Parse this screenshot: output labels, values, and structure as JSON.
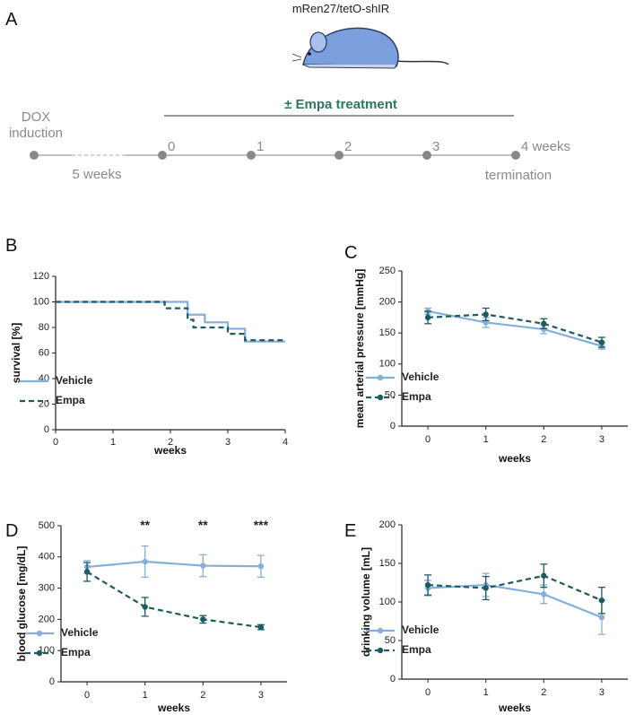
{
  "diagram": {
    "label": "A",
    "mouse_label": "mRen27/tetO-shIR",
    "treatment": "± Empa treatment",
    "dox_label": [
      "DOX",
      "induction"
    ],
    "induction_period": "5 weeks",
    "timepoints": [
      "0",
      "1",
      "2",
      "3",
      "4 weeks"
    ],
    "end_label": "termination"
  },
  "chart_data": [
    {
      "label": "B",
      "type": "line",
      "step": true,
      "markers": false,
      "xlabel": "weeks",
      "ylabel": "survival [%]",
      "xlim": [
        0,
        4
      ],
      "xticks": [
        0,
        1,
        2,
        3,
        4
      ],
      "ylim": [
        0,
        120
      ],
      "yticks": [
        0,
        20,
        40,
        60,
        80,
        100,
        120
      ],
      "legend": "lower left",
      "series": [
        {
          "name": "Vehicle",
          "color": "#86aedb",
          "linestyle": "solid",
          "x": [
            0,
            2.3,
            2.6,
            3.0,
            3.3,
            4
          ],
          "values": [
            100,
            90,
            84,
            79,
            69,
            69
          ]
        },
        {
          "name": "Empa",
          "color": "#1c5b62",
          "linestyle": "dashed",
          "x": [
            0,
            1.9,
            2.3,
            2.4,
            3.0,
            3.3,
            4
          ],
          "values": [
            100,
            95,
            86,
            80,
            75,
            70,
            70
          ]
        }
      ]
    },
    {
      "label": "C",
      "type": "line",
      "step": false,
      "markers": true,
      "xlabel": "weeks",
      "ylabel": "mean arterial pressure [mmHg]",
      "x": [
        0,
        1,
        2,
        3
      ],
      "xlim": [
        -0.45,
        3.45
      ],
      "xticks": [
        0,
        1,
        2,
        3
      ],
      "ylim": [
        0,
        250
      ],
      "yticks": [
        0,
        50,
        100,
        150,
        200,
        250
      ],
      "legend": "lower left",
      "series": [
        {
          "name": "Vehicle",
          "color": "#86aedb",
          "linestyle": "solid",
          "values": [
            185,
            167,
            156,
            129
          ],
          "errors": [
            5,
            8,
            7,
            5
          ]
        },
        {
          "name": "Empa",
          "color": "#1c5b62",
          "linestyle": "dashed",
          "values": [
            175,
            180,
            165,
            135
          ],
          "errors": [
            10,
            10,
            8,
            8
          ]
        }
      ]
    },
    {
      "label": "D",
      "type": "line",
      "step": false,
      "markers": true,
      "xlabel": "weeks",
      "ylabel": "blood glucose [mg/dL]",
      "x": [
        0,
        1,
        2,
        3
      ],
      "xlim": [
        -0.45,
        3.45
      ],
      "xticks": [
        0,
        1,
        2,
        3
      ],
      "ylim": [
        0,
        500
      ],
      "yticks": [
        0,
        100,
        200,
        300,
        400,
        500
      ],
      "legend": "lower left",
      "annotations": [
        {
          "x": 1,
          "text": "**"
        },
        {
          "x": 2,
          "text": "**"
        },
        {
          "x": 3,
          "text": "***"
        }
      ],
      "series": [
        {
          "name": "Vehicle",
          "color": "#86aedb",
          "linestyle": "solid",
          "values": [
            368,
            385,
            372,
            370
          ],
          "errors": [
            20,
            50,
            35,
            35
          ]
        },
        {
          "name": "Empa",
          "color": "#1c5b62",
          "linestyle": "dashed",
          "values": [
            352,
            240,
            200,
            175
          ],
          "errors": [
            30,
            30,
            12,
            8
          ]
        }
      ]
    },
    {
      "label": "E",
      "type": "line",
      "step": false,
      "markers": true,
      "xlabel": "weeks",
      "ylabel": "drinking volume  [mL]",
      "x": [
        0,
        1,
        2,
        3
      ],
      "xlim": [
        -0.45,
        3.45
      ],
      "xticks": [
        0,
        1,
        2,
        3
      ],
      "ylim": [
        0,
        200
      ],
      "yticks": [
        0,
        50,
        100,
        150,
        200
      ],
      "legend": "lower left",
      "series": [
        {
          "name": "Vehicle",
          "color": "#86aedb",
          "linestyle": "solid",
          "values": [
            118,
            122,
            110,
            80
          ],
          "errors": [
            10,
            15,
            12,
            22
          ]
        },
        {
          "name": "Empa",
          "color": "#1c5b62",
          "linestyle": "dashed",
          "values": [
            122,
            118,
            134,
            102
          ],
          "errors": [
            13,
            15,
            15,
            17
          ]
        }
      ]
    }
  ]
}
